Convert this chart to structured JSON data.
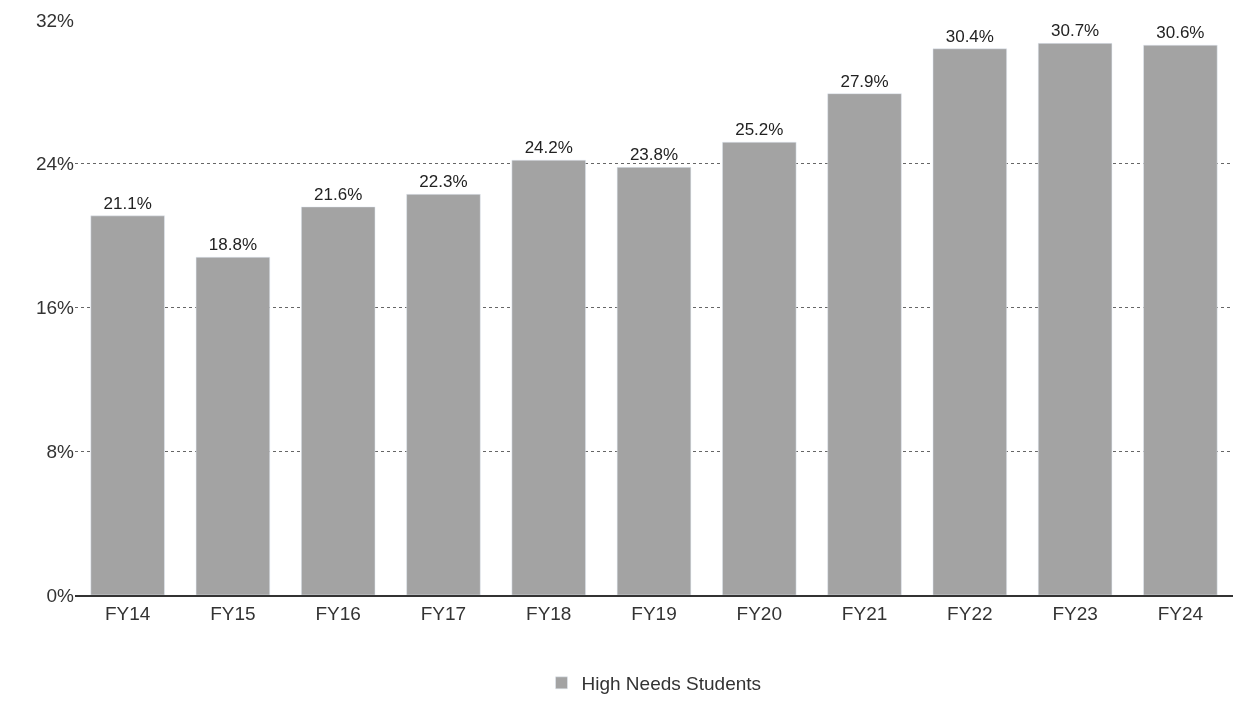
{
  "chart_data": {
    "type": "bar",
    "categories": [
      "FY14",
      "FY15",
      "FY16",
      "FY17",
      "FY18",
      "FY19",
      "FY20",
      "FY21",
      "FY22",
      "FY23",
      "FY24"
    ],
    "series": [
      {
        "name": "High Needs Students",
        "color": "#a3a3a3",
        "values": [
          21.1,
          18.8,
          21.6,
          22.3,
          24.2,
          23.8,
          25.2,
          27.9,
          30.4,
          30.7,
          30.6
        ],
        "value_labels": [
          "21.1%",
          "18.8%",
          "21.6%",
          "22.3%",
          "24.2%",
          "23.8%",
          "25.2%",
          "27.9%",
          "30.4%",
          "30.7%",
          "30.6%"
        ]
      }
    ],
    "ylim": [
      0,
      32
    ],
    "yticks": [
      {
        "value": 0,
        "label": "0%"
      },
      {
        "value": 8,
        "label": "8%"
      },
      {
        "value": 16,
        "label": "16%"
      },
      {
        "value": 24,
        "label": "24%"
      },
      {
        "value": 32,
        "label": "32%"
      }
    ],
    "grid": "y",
    "legend": "bottom"
  }
}
